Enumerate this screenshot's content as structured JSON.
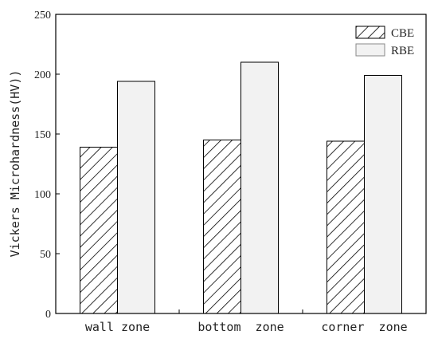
{
  "chart_data": {
    "type": "bar",
    "title": "",
    "xlabel": "",
    "ylabel": "Vickers Microhardness(HV))",
    "categories": [
      "wall zone",
      "bottom  zone",
      "corner  zone"
    ],
    "series": [
      {
        "name": "CBE",
        "values": [
          139,
          145,
          144
        ],
        "fill": "hatched",
        "color": "#000000"
      },
      {
        "name": "RBE",
        "values": [
          194,
          210,
          199
        ],
        "fill": "solid",
        "color": "#f2f2f2"
      }
    ],
    "ylim": [
      0,
      250
    ],
    "yticks": [
      0,
      50,
      100,
      150,
      200,
      250
    ],
    "grid": false,
    "legend_position": "top-right"
  }
}
